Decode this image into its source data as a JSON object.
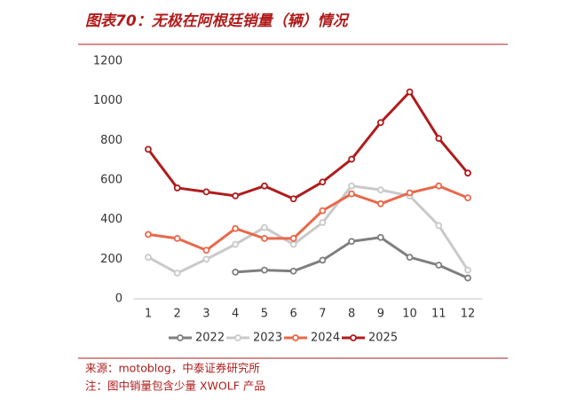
{
  "chart_data": {
    "type": "line",
    "title": "图表70：无极在阿根廷销量（辆）情况",
    "categories": [
      "1",
      "2",
      "3",
      "4",
      "5",
      "6",
      "7",
      "8",
      "9",
      "10",
      "11",
      "12"
    ],
    "series": [
      {
        "name": "2022",
        "color": "#7f7f7f",
        "values": [
          null,
          null,
          null,
          135,
          145,
          140,
          195,
          290,
          310,
          210,
          170,
          105
        ]
      },
      {
        "name": "2023",
        "color": "#c9c9c9",
        "values": [
          210,
          130,
          200,
          275,
          360,
          275,
          385,
          570,
          550,
          520,
          370,
          145
        ]
      },
      {
        "name": "2024",
        "color": "#e8694a",
        "values": [
          325,
          305,
          245,
          355,
          305,
          305,
          445,
          530,
          480,
          535,
          570,
          510
        ]
      },
      {
        "name": "2025",
        "color": "#b01c1c",
        "values": [
          755,
          560,
          540,
          520,
          570,
          505,
          590,
          705,
          890,
          1045,
          810,
          635
        ]
      }
    ],
    "ylim": [
      0,
      1200
    ],
    "yticks": [
      0,
      200,
      400,
      600,
      800,
      1000,
      1200
    ],
    "grid": false,
    "legend": "bottom",
    "source": "来源：motoblog，中泰证券研究所",
    "note": "注：图中销量包含少量 XWOLF 产品"
  }
}
